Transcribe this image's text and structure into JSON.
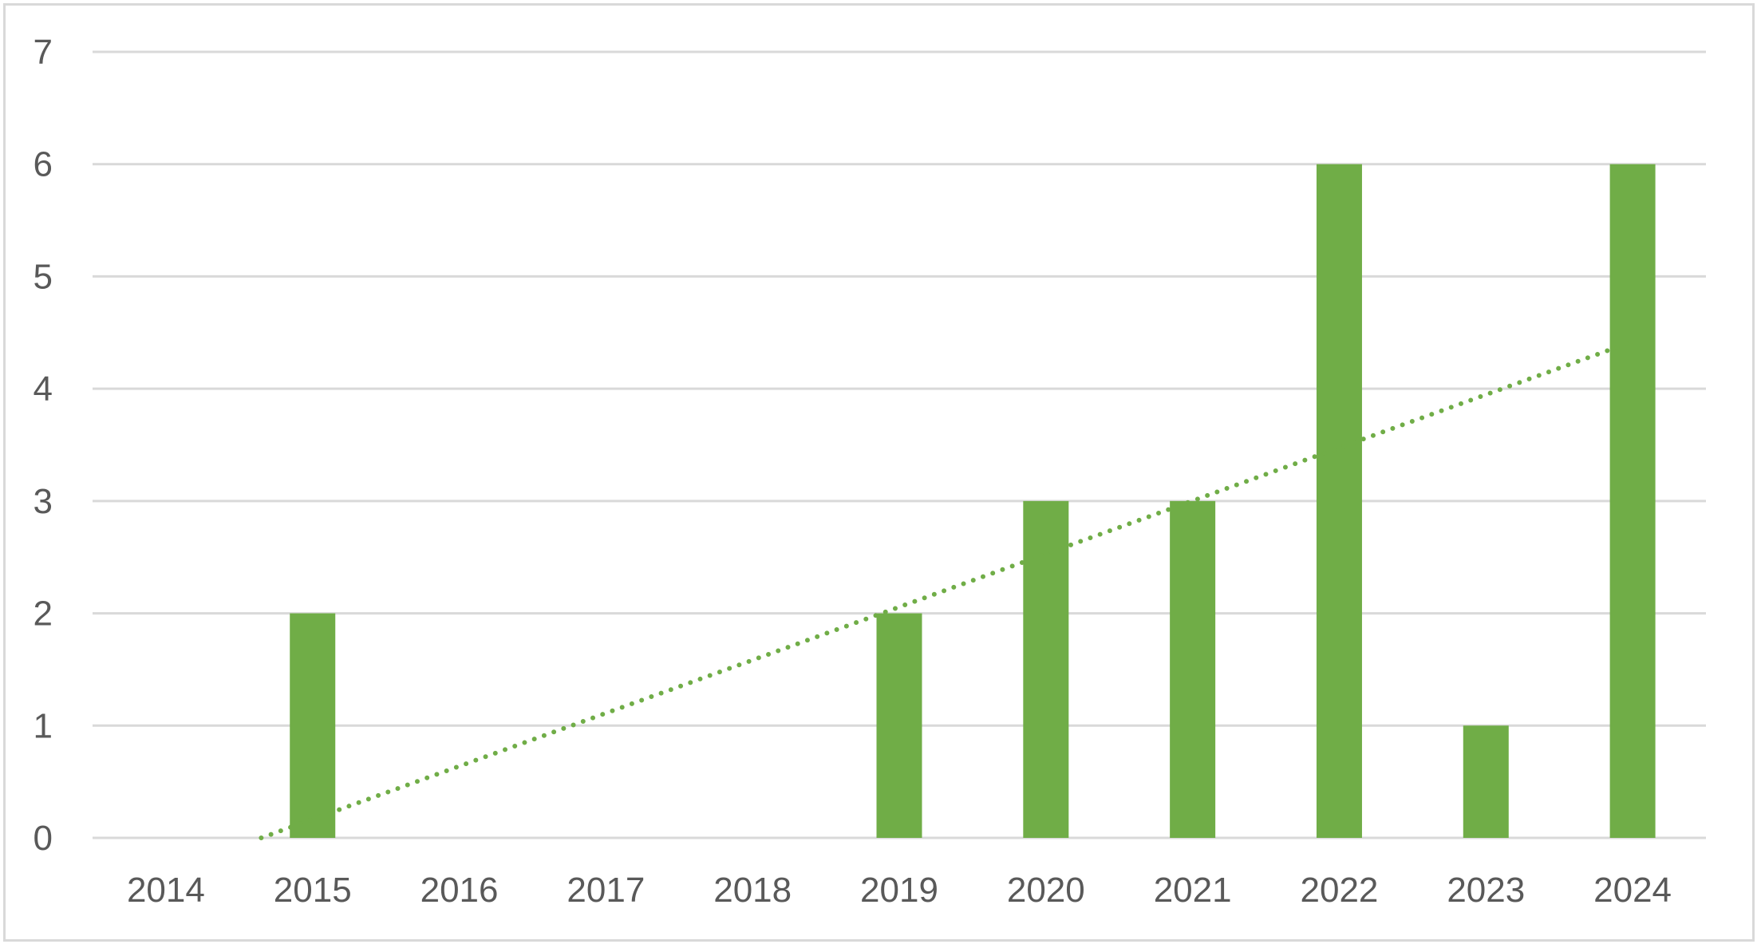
{
  "chart_data": {
    "type": "bar",
    "title": "",
    "xlabel": "",
    "ylabel": "",
    "categories": [
      "2014",
      "2015",
      "2016",
      "2017",
      "2018",
      "2019",
      "2020",
      "2021",
      "2022",
      "2023",
      "2024"
    ],
    "series": [
      {
        "values": [
          0,
          2,
          0,
          0,
          0,
          2,
          3,
          3,
          6,
          1,
          6
        ]
      }
    ],
    "ylim": [
      0,
      7
    ],
    "yticks": [
      "0",
      "1",
      "2",
      "3",
      "4",
      "5",
      "6",
      "7"
    ],
    "grid": true,
    "legend": "none",
    "trendline": {
      "type": "linear",
      "style": "dotted",
      "from": [
        2014.65,
        0
      ],
      "to": [
        2024,
        4.42
      ]
    },
    "colors": {
      "bar": "#70ad47",
      "trendline": "#70ad47",
      "grid": "#d9d9d9",
      "tick_text": "#595959",
      "border": "#d9d9d9"
    }
  }
}
